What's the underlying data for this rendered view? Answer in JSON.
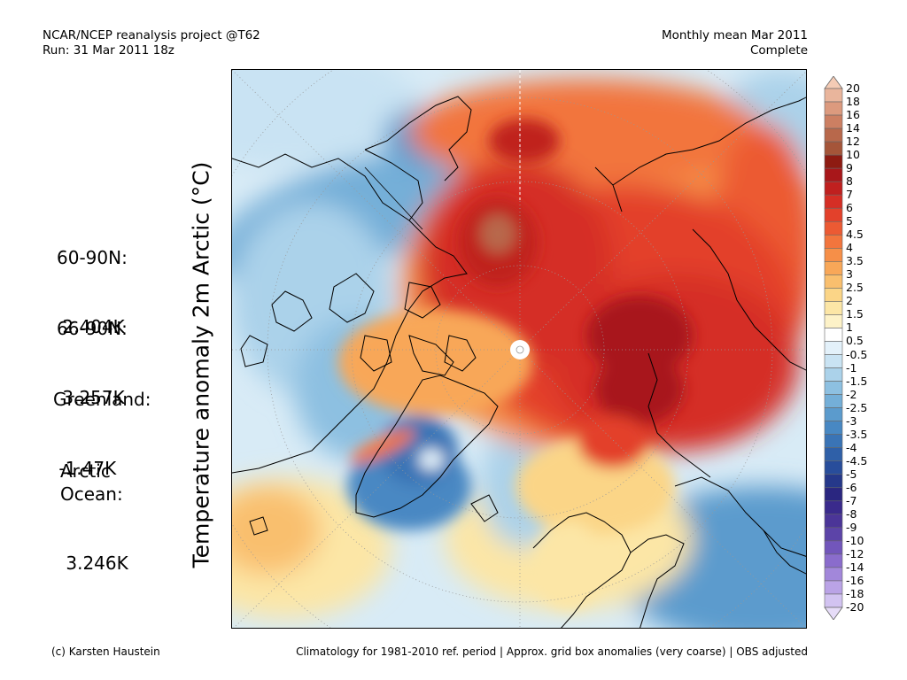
{
  "header": {
    "left_line1": "NCAR/NCEP reanalysis project @T62",
    "left_line2": "Run: 31 Mar 2011 18z",
    "right_line1": "Monthly mean Mar 2011",
    "right_line2": "Complete"
  },
  "y_axis_label": "Temperature anomaly 2m Arctic (°C)",
  "stats": [
    {
      "region": "60-90N:",
      "value": " 2.404K"
    },
    {
      "region": "66-90N:",
      "value": " 3.257K"
    },
    {
      "region": "Greenland:",
      "value": " -1.47K"
    },
    {
      "region": "Arctic\nOcean:",
      "value": " 3.246K"
    }
  ],
  "colorbar": {
    "levels": [
      "20",
      "18",
      "16",
      "14",
      "12",
      "10",
      "9",
      "8",
      "7",
      "6",
      "5",
      "4.5",
      "4",
      "3.5",
      "3",
      "2.5",
      "2",
      "1.5",
      "1",
      "0.5",
      "-0.5",
      "-1",
      "-1.5",
      "-2",
      "-2.5",
      "-3",
      "-3.5",
      "-4",
      "-4.5",
      "-5",
      "-6",
      "-7",
      "-8",
      "-9",
      "-10",
      "-12",
      "-14",
      "-16",
      "-18",
      "-20"
    ],
    "colors": [
      "#e9b59c",
      "#dc9a7e",
      "#cc7f62",
      "#b8684b",
      "#a55539",
      "#8e1b12",
      "#a8171a",
      "#c0201f",
      "#d52e25",
      "#e3412b",
      "#ec5a33",
      "#f2753d",
      "#f68f48",
      "#f8a758",
      "#f9bf6e",
      "#fbd587",
      "#fce6a6",
      "#fdf2c8",
      "#ffffff",
      "#e3f1fa",
      "#c9e3f3",
      "#abd2ea",
      "#8dc0e1",
      "#74afd8",
      "#5b9bcd",
      "#4888c3",
      "#3a74b6",
      "#2f60a8",
      "#284d9b",
      "#25388a",
      "#2a2680",
      "#3a2a8c",
      "#4b3598",
      "#5c44a8",
      "#7256bb",
      "#8a6ccc",
      "#a287da",
      "#baa3e6",
      "#d2c3f1"
    ],
    "top_arrow_color": "#f4cbb5",
    "bottom_arrow_color": "#e6dcf8"
  },
  "footer": {
    "left": "(c) Karsten Haustein",
    "right": "Climatology for 1981-2010 ref. period | Approx. grid box anomalies (very coarse) | OBS adjusted"
  }
}
